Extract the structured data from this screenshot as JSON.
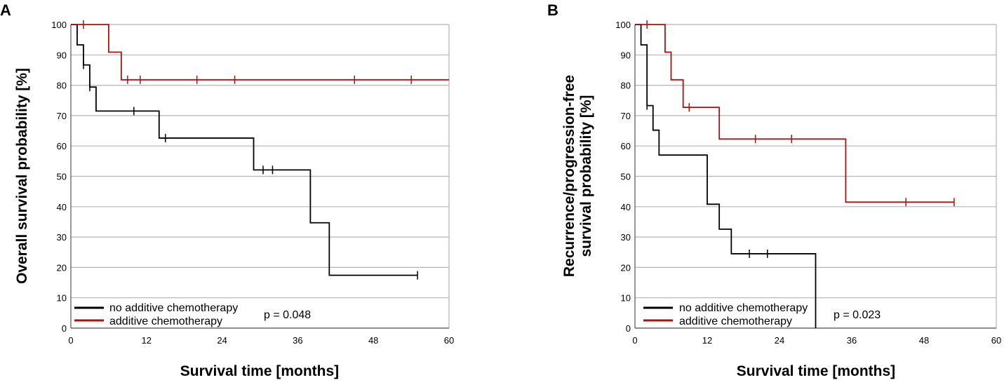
{
  "chart_data": [
    {
      "type": "line",
      "subtype": "kaplan-meier",
      "panel_label": "A",
      "title": "",
      "xlabel": "Survival time [months]",
      "ylabel": "Overall survival probability [%]",
      "xlim": [
        0,
        60
      ],
      "ylim": [
        0,
        100
      ],
      "xticks": [
        "0",
        "12",
        "24",
        "36",
        "48",
        "60"
      ],
      "yticks": [
        "0",
        "10",
        "20",
        "30",
        "40",
        "50",
        "60",
        "70",
        "80",
        "90",
        "100"
      ],
      "grid": "horizontal",
      "legend_position": "bottom-left",
      "annotation": "p = 0.048",
      "series": [
        {
          "name": "no additive chemotherapy",
          "color": "#000000",
          "steps": [
            [
              0,
              100
            ],
            [
              1,
              93.3
            ],
            [
              2,
              86.7
            ],
            [
              3,
              79.4
            ],
            [
              4,
              71.5
            ],
            [
              14,
              62.6
            ],
            [
              29,
              52.1
            ],
            [
              38,
              34.7
            ],
            [
              41,
              17.4
            ],
            [
              55,
              17.4
            ]
          ],
          "censored": [
            [
              2,
              86.7
            ],
            [
              3,
              79.4
            ],
            [
              10,
              71.5
            ],
            [
              15,
              62.6
            ],
            [
              30.5,
              52.1
            ],
            [
              32,
              52.1
            ],
            [
              55,
              17.4
            ]
          ]
        },
        {
          "name": "additive chemotherapy",
          "color": "#a31515",
          "steps": [
            [
              0,
              100
            ],
            [
              6,
              90.9
            ],
            [
              8,
              81.8
            ],
            [
              60,
              81.8
            ]
          ],
          "censored": [
            [
              2,
              100
            ],
            [
              9,
              81.8
            ],
            [
              11,
              81.8
            ],
            [
              20,
              81.8
            ],
            [
              26,
              81.8
            ],
            [
              45,
              81.8
            ],
            [
              54,
              81.8
            ]
          ]
        }
      ]
    },
    {
      "type": "line",
      "subtype": "kaplan-meier",
      "panel_label": "B",
      "title": "",
      "xlabel": "Survival time [months]",
      "ylabel_line1": "Recurrence/progression-free",
      "ylabel_line2": "survival probability [%]",
      "xlim": [
        0,
        60
      ],
      "ylim": [
        0,
        100
      ],
      "xticks": [
        "0",
        "12",
        "24",
        "36",
        "48",
        "60"
      ],
      "yticks": [
        "0",
        "10",
        "20",
        "30",
        "40",
        "50",
        "60",
        "70",
        "80",
        "90",
        "100"
      ],
      "grid": "horizontal",
      "legend_position": "bottom-left",
      "annotation": "p = 0.023",
      "series": [
        {
          "name": "no additive chemotherapy",
          "color": "#000000",
          "steps": [
            [
              0,
              100
            ],
            [
              1,
              93.3
            ],
            [
              2,
              73.3
            ],
            [
              3,
              65.2
            ],
            [
              4,
              57.0
            ],
            [
              12,
              40.8
            ],
            [
              14,
              32.6
            ],
            [
              16,
              24.5
            ],
            [
              30,
              24.5
            ],
            [
              30,
              0
            ]
          ],
          "censored": [
            [
              2,
              73.3
            ],
            [
              19,
              24.5
            ],
            [
              22,
              24.5
            ]
          ]
        },
        {
          "name": "additive chemotherapy",
          "color": "#a31515",
          "steps": [
            [
              0,
              100
            ],
            [
              5,
              90.9
            ],
            [
              6,
              81.8
            ],
            [
              8,
              72.7
            ],
            [
              14,
              62.3
            ],
            [
              35,
              62.3
            ],
            [
              35,
              41.5
            ],
            [
              53,
              41.5
            ]
          ],
          "censored": [
            [
              2,
              100
            ],
            [
              9,
              72.7
            ],
            [
              20,
              62.3
            ],
            [
              26,
              62.3
            ],
            [
              45,
              41.5
            ],
            [
              53,
              41.5
            ]
          ]
        }
      ]
    }
  ]
}
